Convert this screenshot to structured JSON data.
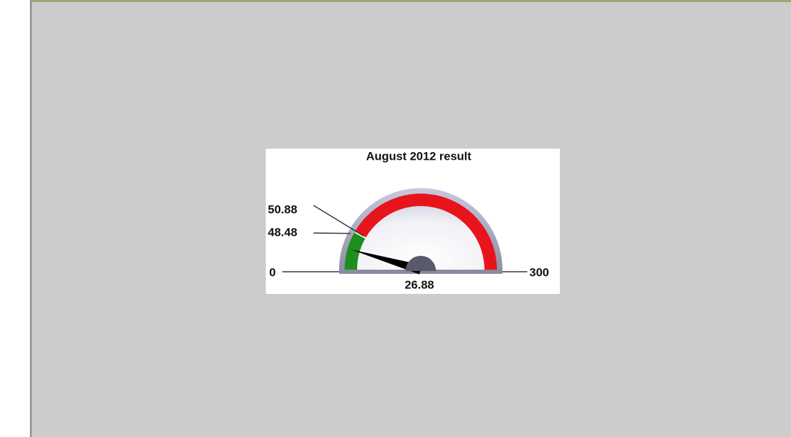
{
  "chart_data": {
    "type": "gauge",
    "title": "August 2012 result",
    "min": 0,
    "max": 300,
    "value": 26.88,
    "bands": [
      {
        "from": 0,
        "to": 48.48,
        "color": "#1e8e1e"
      },
      {
        "from": 50.88,
        "to": 300,
        "color": "#e8141c"
      }
    ],
    "needle_color": "#000000"
  }
}
